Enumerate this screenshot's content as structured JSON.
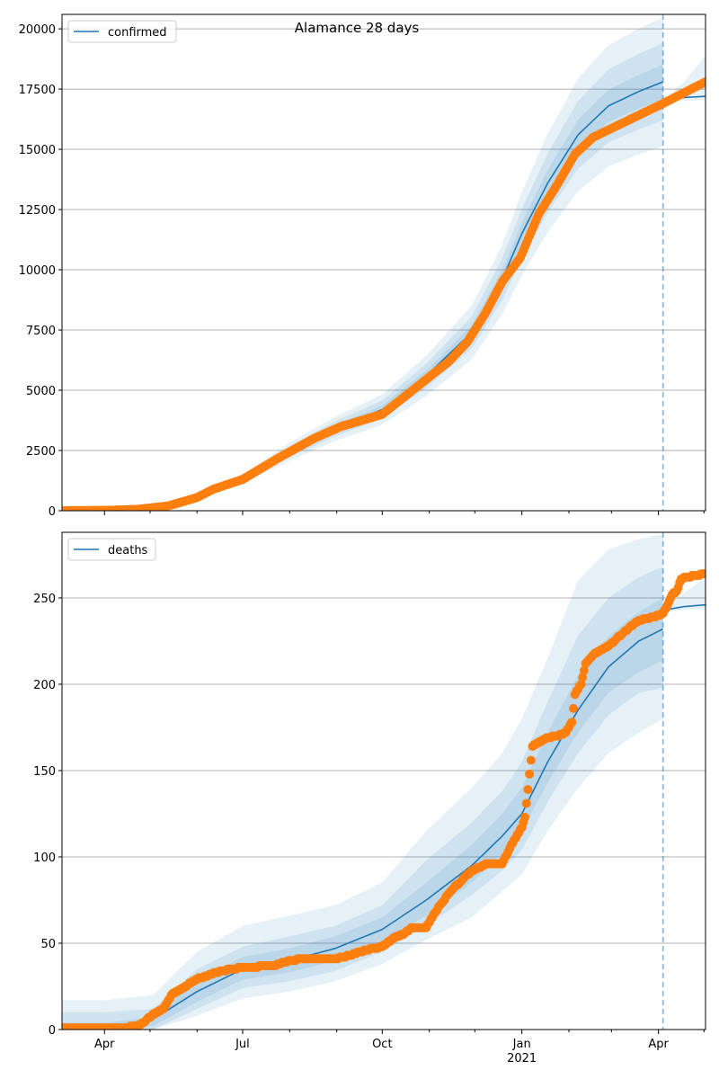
{
  "title": "Alamance 28 days",
  "colors": {
    "model": "#1f77b4",
    "observed": "#ff7f0e",
    "grid": "#b0b0b0"
  },
  "chart_data": [
    {
      "type": "line",
      "name": "confirmed",
      "legend": "confirmed",
      "legend_position": "top-left",
      "x_unit": "days since 2020-03-04",
      "xlim": [
        0,
        424
      ],
      "ylim": [
        0,
        20600
      ],
      "yticks": [
        0,
        2500,
        5000,
        7500,
        10000,
        12500,
        15000,
        17500,
        20000
      ],
      "ytick_labels": [
        "0",
        "2500",
        "5000",
        "7500",
        "10000",
        "12500",
        "15000",
        "17500",
        "20000"
      ],
      "grid": "horizontal",
      "forecast_start_day": 396,
      "model": {
        "days": [
          0,
          28,
          60,
          89,
          119,
          150,
          180,
          211,
          240,
          270,
          290,
          303,
          320,
          340,
          360,
          380,
          396
        ],
        "values": [
          0,
          20,
          150,
          550,
          1300,
          2450,
          3400,
          4200,
          5600,
          7400,
          9600,
          11500,
          13600,
          15600,
          16800,
          17400,
          17800
        ],
        "bands": [
          {
            "level": "outer",
            "hi": [
              0,
              23,
              173,
              633,
              1495,
              2818,
              3910,
              4830,
              6440,
              8510,
              11040,
              13225,
              15640,
              17940,
              19320,
              20010,
              20470
            ],
            "lo": [
              0,
              17,
              128,
              468,
              1105,
              2083,
              2890,
              3570,
              4760,
              6290,
              8160,
              9775,
              11560,
              13260,
              14280,
              14790,
              15130
            ]
          },
          {
            "level": "middle",
            "hi": [
              0,
              22,
              164,
              600,
              1417,
              2671,
              3706,
              4578,
              6104,
              8066,
              10464,
              12535,
              14824,
              17004,
              18312,
              18966,
              19402
            ],
            "lo": [
              0,
              18,
              137,
              501,
              1183,
              2230,
              3094,
              3822,
              5096,
              6734,
              8736,
              10465,
              12376,
              14196,
              15288,
              15834,
              16198
            ]
          },
          {
            "level": "inner",
            "hi": [
              0,
              21,
              156,
              572,
              1352,
              2548,
              3536,
              4368,
              5824,
              7696,
              9984,
              11960,
              14144,
              16224,
              17472,
              18096,
              18512
            ],
            "lo": [
              0,
              19,
              144,
              528,
              1248,
              2352,
              3264,
              4032,
              5376,
              7104,
              9216,
              11040,
              13056,
              14976,
              16128,
              16704,
              17088
            ]
          }
        ]
      },
      "forecast": {
        "days": [
          397,
          410,
          424
        ],
        "values": [
          17000,
          17150,
          17200
        ],
        "bands": [
          {
            "level": "outer",
            "hi": [
              17100,
              17800,
              18900
            ],
            "lo": [
              16980,
              17000,
              17050
            ]
          }
        ]
      },
      "observed": {
        "days": [
          0,
          28,
          50,
          70,
          89,
          100,
          119,
          143,
          166,
          184,
          211,
          231,
          255,
          267,
          279,
          290,
          302,
          314,
          326,
          338,
          350,
          373,
          396,
          424
        ],
        "values": [
          5,
          15,
          60,
          200,
          550,
          900,
          1300,
          2200,
          3000,
          3500,
          4000,
          5000,
          6200,
          7000,
          8200,
          9500,
          10500,
          12300,
          13500,
          14800,
          15500,
          16200,
          16900,
          17800
        ]
      }
    },
    {
      "type": "line",
      "name": "deaths",
      "legend": "deaths",
      "legend_position": "top-left",
      "x_unit": "days since 2020-03-04",
      "xlim": [
        0,
        424
      ],
      "ylim": [
        0,
        288
      ],
      "yticks": [
        0,
        50,
        100,
        150,
        200,
        250
      ],
      "ytick_labels": [
        "0",
        "50",
        "100",
        "150",
        "200",
        "250"
      ],
      "xticks": [
        28,
        119,
        211,
        303,
        393
      ],
      "xtick_labels": [
        "Apr",
        "Jul",
        "Oct",
        "Jan",
        "Apr"
      ],
      "xtick_sublabel": "2021",
      "grid": "horizontal",
      "forecast_start_day": 396,
      "model": {
        "days": [
          0,
          28,
          60,
          89,
          119,
          150,
          180,
          211,
          240,
          270,
          290,
          303,
          320,
          340,
          360,
          380,
          396
        ],
        "values": [
          0,
          1,
          6,
          22,
          35,
          40,
          47,
          58,
          75,
          95,
          112,
          125,
          155,
          185,
          210,
          225,
          232
        ],
        "bands": [
          {
            "level": "outer",
            "hi": [
              17,
              17,
              20,
              45,
              60,
              66,
              72,
              85,
              115,
              140,
              160,
              180,
              215,
              260,
              278,
              284,
              287
            ],
            "lo": [
              0,
              0,
              0,
              8,
              18,
              22,
              28,
              38,
              52,
              65,
              80,
              90,
              115,
              140,
              160,
              172,
              180
            ]
          },
          {
            "level": "middle",
            "hi": [
              10,
              10,
              12,
              35,
              48,
              54,
              60,
              72,
              98,
              120,
              138,
              155,
              190,
              228,
              250,
              262,
              268
            ],
            "lo": [
              0,
              0,
              0,
              12,
              24,
              28,
              34,
              45,
              60,
              78,
              92,
              104,
              132,
              160,
              182,
              195,
              198
            ]
          },
          {
            "level": "inner",
            "hi": [
              4,
              4,
              7,
              28,
              42,
              47,
              54,
              65,
              85,
              107,
              125,
              140,
              172,
              205,
              228,
              242,
              250
            ],
            "lo": [
              0,
              0,
              2,
              16,
              29,
              33,
              40,
              51,
              66,
              85,
              102,
              115,
              143,
              172,
              195,
              207,
              214
            ]
          }
        ]
      },
      "forecast": {
        "days": [
          397,
          410,
          424
        ],
        "values": [
          243,
          245,
          246
        ],
        "bands": [
          {
            "level": "outer",
            "hi": [
              246,
              253,
              262
            ],
            "lo": [
              242,
              243,
              244
            ]
          }
        ]
      },
      "observed": {
        "days": [
          0,
          40,
          50,
          55,
          60,
          67,
          72,
          80,
          88,
          95,
          105,
          119,
          140,
          150,
          160,
          170,
          180,
          190,
          200,
          211,
          220,
          225,
          230,
          240,
          245,
          255,
          265,
          270,
          280,
          290,
          298,
          303,
          305,
          310,
          320,
          330,
          332,
          336,
          338,
          342,
          345,
          350,
          360,
          370,
          380,
          390,
          396,
          398,
          402,
          405,
          408,
          412,
          424
        ],
        "values": [
          1,
          1,
          2,
          5,
          9,
          12,
          20,
          24,
          29,
          31,
          34,
          36,
          37,
          40,
          41,
          41,
          41,
          43,
          46,
          48,
          54,
          55,
          59,
          59,
          67,
          79,
          88,
          92,
          96,
          96,
          110,
          117,
          123,
          164,
          169,
          171,
          172,
          178,
          194,
          200,
          212,
          217,
          222,
          230,
          237,
          239,
          241,
          244,
          252,
          254,
          261,
          262,
          264
        ]
      }
    }
  ],
  "minor_tick_days": [
    -3,
    58,
    89,
    150,
    181,
    242,
    272,
    334,
    362,
    423
  ]
}
